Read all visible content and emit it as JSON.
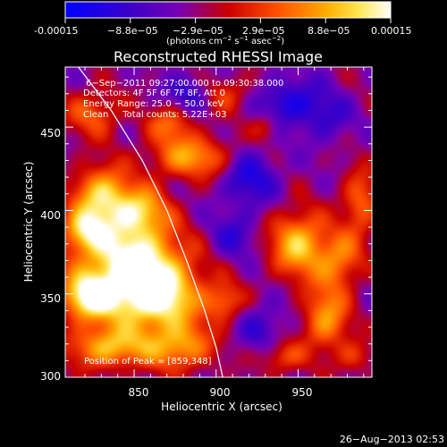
{
  "colorbar": {
    "ticks": [
      "-0.00015",
      "−8.8e−05",
      "−2.9e−05",
      "2.9e−05",
      "8.8e−05",
      "0.00015"
    ],
    "unit_parts": [
      "(photons cm",
      "−2",
      " s",
      "−1",
      " asec",
      "−2",
      ")"
    ],
    "range": [
      -0.00015,
      0.00015
    ],
    "scale": "linear",
    "colormap": "rainbow-blue-purple-red-yellow-white"
  },
  "chart_data": {
    "type": "heatmap",
    "title": "Reconstructed RHESSI Image",
    "xlabel": "Heliocentric X (arcsec)",
    "ylabel": "Heliocentric Y (arcsec)",
    "xlim": [
      808,
      995
    ],
    "ylim": [
      300,
      486
    ],
    "xticks": [
      850,
      900,
      950
    ],
    "yticks": [
      300,
      350,
      400,
      450
    ],
    "grid": false,
    "info_lines": [
      "6−Sep−2011 09:27:00.000 to 09:30:38.000",
      "Detectors: 4F 5F 6F 7F 8F, Att 0",
      "Energy Range: 25.0 − 50.0 keV",
      "Clean     Total counts: 5.22E+03"
    ],
    "peak_label": "Position of Peak = [859,348]",
    "peak_position": [
      859,
      348
    ],
    "limb_curve": [
      [
        816,
        486
      ],
      [
        836,
        460
      ],
      [
        855,
        430
      ],
      [
        870,
        400
      ],
      [
        882,
        370
      ],
      [
        893,
        340
      ],
      [
        900,
        318
      ],
      [
        904,
        300
      ]
    ],
    "source_regions": [
      {
        "x": 848,
        "y": 372,
        "sx": 22,
        "sy": 16,
        "amp": 1.05
      },
      {
        "x": 862,
        "y": 348,
        "sx": 20,
        "sy": 14,
        "amp": 1.15
      },
      {
        "x": 822,
        "y": 348,
        "sx": 12,
        "sy": 10,
        "amp": 1.0
      },
      {
        "x": 830,
        "y": 410,
        "sx": 12,
        "sy": 12,
        "amp": 0.85
      },
      {
        "x": 853,
        "y": 400,
        "sx": 12,
        "sy": 10,
        "amp": 0.75
      },
      {
        "x": 820,
        "y": 388,
        "sx": 10,
        "sy": 9,
        "amp": 0.75
      },
      {
        "x": 835,
        "y": 318,
        "sx": 18,
        "sy": 9,
        "amp": 0.8
      },
      {
        "x": 878,
        "y": 318,
        "sx": 14,
        "sy": 10,
        "amp": 0.7
      },
      {
        "x": 885,
        "y": 432,
        "sx": 18,
        "sy": 9,
        "amp": 0.7
      },
      {
        "x": 872,
        "y": 452,
        "sx": 10,
        "sy": 8,
        "amp": 0.5
      },
      {
        "x": 825,
        "y": 458,
        "sx": 12,
        "sy": 10,
        "amp": 0.5
      },
      {
        "x": 905,
        "y": 470,
        "sx": 12,
        "sy": 8,
        "amp": 0.4
      },
      {
        "x": 950,
        "y": 380,
        "sx": 12,
        "sy": 14,
        "amp": 0.85
      },
      {
        "x": 967,
        "y": 335,
        "sx": 10,
        "sy": 14,
        "amp": 0.7
      },
      {
        "x": 975,
        "y": 370,
        "sx": 10,
        "sy": 12,
        "amp": 0.6
      },
      {
        "x": 988,
        "y": 405,
        "sx": 8,
        "sy": 14,
        "amp": 0.55
      },
      {
        "x": 940,
        "y": 312,
        "sx": 10,
        "sy": 7,
        "amp": 0.45
      },
      {
        "x": 985,
        "y": 312,
        "sx": 8,
        "sy": 7,
        "amp": 0.35
      },
      {
        "x": 905,
        "y": 345,
        "sx": 8,
        "sy": 8,
        "amp": 0.5
      },
      {
        "x": 930,
        "y": 450,
        "sx": 6,
        "sy": 6,
        "amp": 0.35
      },
      {
        "x": 885,
        "y": 470,
        "sx": -10,
        "sy": 8,
        "amp": -0.45
      },
      {
        "x": 920,
        "y": 420,
        "sx": -12,
        "sy": 12,
        "amp": -0.5
      },
      {
        "x": 945,
        "y": 465,
        "sx": -14,
        "sy": 10,
        "amp": -0.5
      },
      {
        "x": 910,
        "y": 385,
        "sx": -10,
        "sy": 10,
        "amp": -0.35
      },
      {
        "x": 928,
        "y": 330,
        "sx": -10,
        "sy": 10,
        "amp": -0.35
      },
      {
        "x": 968,
        "y": 455,
        "sx": -10,
        "sy": 10,
        "amp": -0.3
      }
    ]
  },
  "timestamp": "26−Aug−2013 02:53"
}
